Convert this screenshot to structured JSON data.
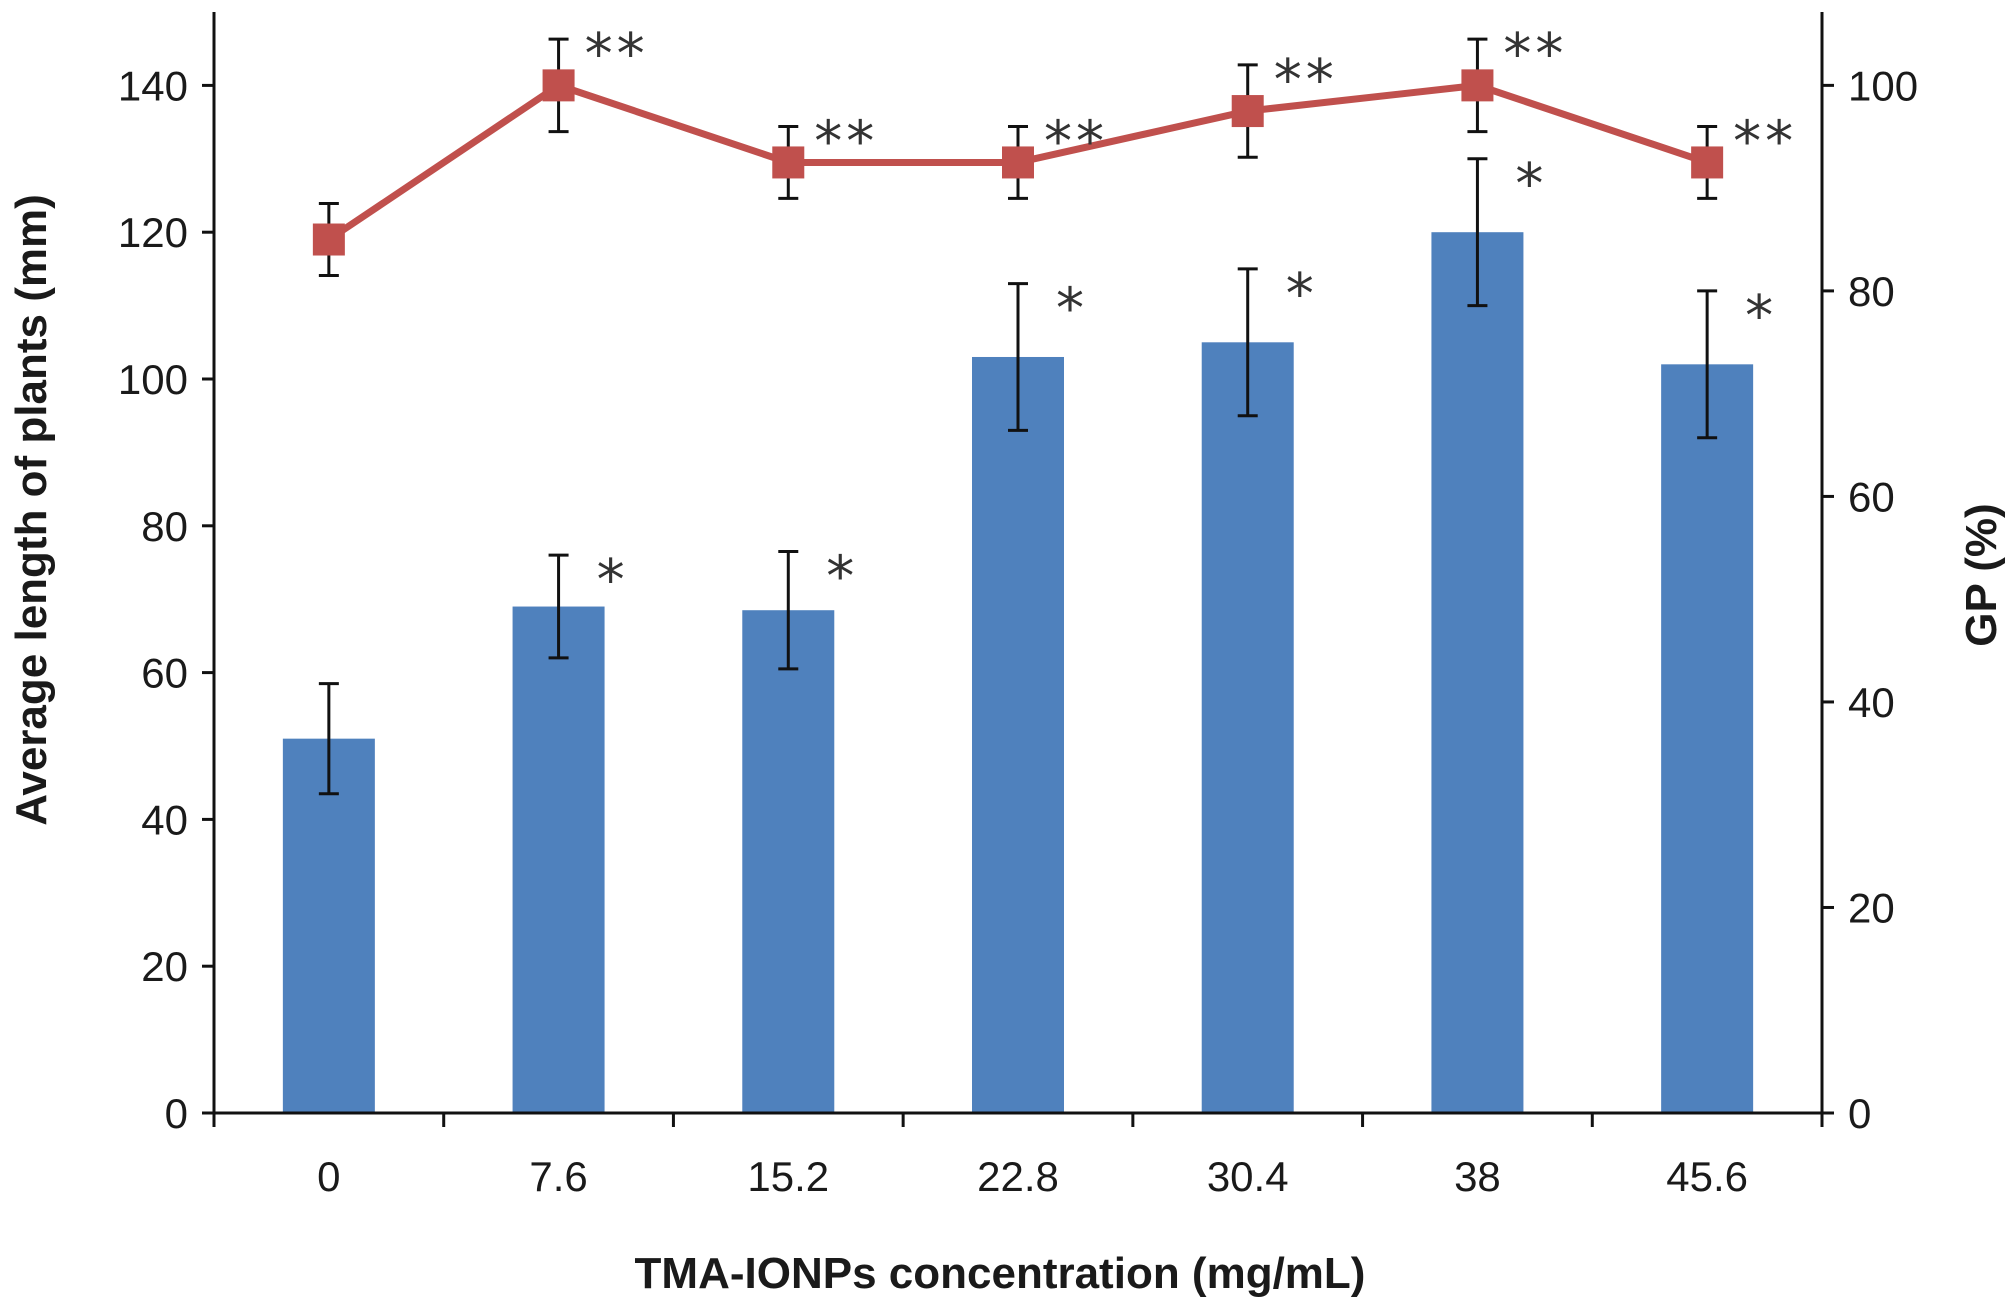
{
  "chart_data": {
    "type": "bar",
    "categories": [
      "0",
      "7.6",
      "15.2",
      "22.8",
      "30.4",
      "38",
      "45.6"
    ],
    "xlabel": "TMA-IONPs concentration (mg/mL)",
    "ylabel": "Average length of plants (mm)",
    "y2label": "GP (%)",
    "ylim": [
      0,
      150
    ],
    "y2lim": [
      0,
      107.14
    ],
    "yticks": [
      0,
      20,
      40,
      60,
      80,
      100,
      120,
      140
    ],
    "y2ticks": [
      0,
      20,
      40,
      60,
      80,
      100
    ],
    "grid": false,
    "bar_color": "#4f81bd",
    "line_color": "#c0504d",
    "series": [
      {
        "type": "bar",
        "axis": "left",
        "values": [
          51,
          69,
          68.5,
          103,
          105,
          120,
          102
        ],
        "error": [
          7.5,
          7,
          8,
          10,
          10,
          10,
          10
        ],
        "annotations": [
          "",
          "*",
          "*",
          "*",
          "*",
          "*",
          "*"
        ]
      },
      {
        "type": "line",
        "axis": "right",
        "values": [
          85,
          100,
          92.5,
          92.5,
          97.5,
          100,
          92.5
        ],
        "error": [
          3.5,
          4.5,
          3.5,
          3.5,
          4.5,
          4.5,
          3.5
        ],
        "annotations": [
          "",
          "**",
          "**",
          "**",
          "**",
          "**",
          "**"
        ]
      }
    ]
  }
}
